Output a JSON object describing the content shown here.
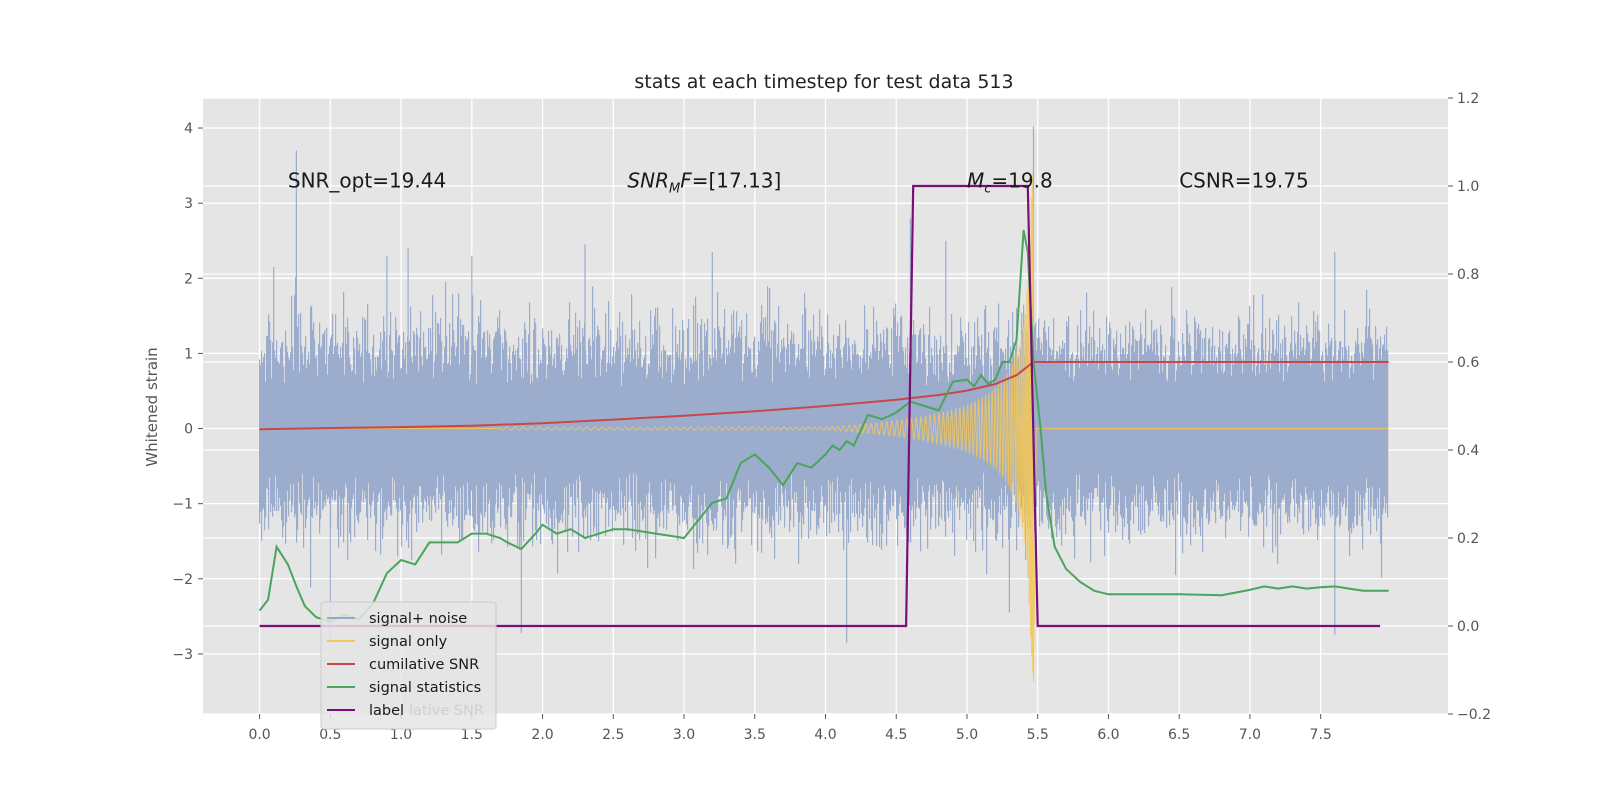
{
  "chart_data": {
    "type": "line",
    "title": "stats at each timestep for test data 513",
    "xlabel": "",
    "ylabel": "Whitened strain",
    "grid": true,
    "xlim": [
      -0.4,
      8.4
    ],
    "ylim": [
      -3.8,
      4.4
    ],
    "y2lim": [
      -0.2,
      1.2
    ],
    "x_ticks": [
      0.0,
      0.5,
      1.0,
      1.5,
      2.0,
      2.5,
      3.0,
      3.5,
      4.0,
      4.5,
      5.0,
      5.5,
      6.0,
      6.5,
      7.0,
      7.5
    ],
    "x_tick_labels": [
      "0.0",
      "0.5",
      "1.0",
      "1.5",
      "2.0",
      "2.5",
      "3.0",
      "3.5",
      "4.0",
      "4.5",
      "5.0",
      "5.5",
      "6.0",
      "6.5",
      "7.0",
      "7.5"
    ],
    "y_ticks": [
      4,
      3,
      2,
      1,
      0,
      -1,
      -2,
      -3
    ],
    "y_tick_labels": [
      "4",
      "3",
      "2",
      "1",
      "0",
      "−1",
      "−2",
      "−3"
    ],
    "y2_ticks": [
      1.2,
      1.0,
      0.8,
      0.6,
      0.4,
      0.2,
      0.0,
      -0.2
    ],
    "y2_tick_labels": [
      "1.2",
      "1.0",
      "0.8",
      "0.6",
      "0.4",
      "0.2",
      "0.0",
      "−0.2"
    ],
    "annotations": [
      {
        "id": "snr-opt",
        "x": 0.2,
        "y": 3.3,
        "text": "SNR_opt=19.44"
      },
      {
        "id": "snr-mf",
        "x": 2.6,
        "y": 3.3,
        "text": "SNR_MF=[17.13]",
        "base": "SNR",
        "sub": "M",
        "rest": "F=[17.13]"
      },
      {
        "id": "mc",
        "x": 5.0,
        "y": 3.3,
        "text": "M_c=19.8",
        "base": "M",
        "sub": "c",
        "rest": "=19.8"
      },
      {
        "id": "csnr",
        "x": 6.5,
        "y": 3.3,
        "text": "CSNR=19.75"
      }
    ],
    "legend": {
      "placement": "lower-left",
      "entries": [
        {
          "label": "signal+ noise",
          "color": "#97a9ca"
        },
        {
          "label": "signal only",
          "color": "#f2c75c"
        },
        {
          "label": "cumilative SNR",
          "color": "#c84848"
        },
        {
          "label": "signal statistics",
          "color": "#4aa55c"
        },
        {
          "label": "label",
          "color": "#7a0f7a"
        }
      ],
      "ghost_text": "lative SNR"
    },
    "series": [
      {
        "name": "signal+ noise",
        "axis": "left",
        "color": "#97a9ca",
        "style": "dense-noise",
        "x_range": [
          0.0,
          7.98
        ],
        "envelope": 1.6,
        "spikes": [
          {
            "x": 0.26,
            "y": 3.7
          },
          {
            "x": 0.1,
            "y": 2.15
          },
          {
            "x": 0.9,
            "y": 2.3
          },
          {
            "x": 1.05,
            "y": 2.4
          },
          {
            "x": 1.5,
            "y": 2.3
          },
          {
            "x": 2.3,
            "y": 2.45
          },
          {
            "x": 3.2,
            "y": 2.35
          },
          {
            "x": 4.6,
            "y": 2.8
          },
          {
            "x": 4.85,
            "y": 2.5
          },
          {
            "x": 5.47,
            "y": 4.02
          },
          {
            "x": 7.6,
            "y": 2.35
          },
          {
            "x": 1.85,
            "y": -2.72
          },
          {
            "x": 4.15,
            "y": -2.85
          },
          {
            "x": 0.5,
            "y": -2.9
          },
          {
            "x": 7.6,
            "y": -2.75
          },
          {
            "x": 5.3,
            "y": -2.45
          }
        ]
      },
      {
        "name": "signal only",
        "axis": "left",
        "color": "#f2c75c",
        "style": "chirp",
        "chirp": {
          "t_start": 1.7,
          "t_merge": 5.47,
          "a_start": 0.02,
          "a_peak": 3.4,
          "min": -3.42,
          "max": 3.5
        }
      },
      {
        "name": "cumilative SNR",
        "axis": "right",
        "color": "#c84848",
        "x": [
          0.0,
          0.5,
          1.0,
          1.5,
          2.0,
          2.5,
          3.0,
          3.5,
          4.0,
          4.5,
          4.8,
          5.0,
          5.2,
          5.35,
          5.45,
          5.47,
          7.98
        ],
        "y": [
          0.447,
          0.45,
          0.452,
          0.455,
          0.461,
          0.469,
          0.478,
          0.488,
          0.5,
          0.514,
          0.525,
          0.535,
          0.55,
          0.57,
          0.595,
          0.6,
          0.6
        ]
      },
      {
        "name": "signal statistics",
        "axis": "right",
        "color": "#4aa55c",
        "x": [
          0.0,
          0.06,
          0.12,
          0.2,
          0.26,
          0.32,
          0.4,
          0.5,
          0.6,
          0.7,
          0.8,
          0.9,
          1.0,
          1.1,
          1.2,
          1.3,
          1.4,
          1.5,
          1.6,
          1.7,
          1.75,
          1.85,
          1.95,
          2.0,
          2.1,
          2.2,
          2.3,
          2.4,
          2.5,
          2.6,
          2.7,
          2.8,
          2.9,
          3.0,
          3.1,
          3.2,
          3.3,
          3.4,
          3.5,
          3.6,
          3.7,
          3.8,
          3.9,
          4.0,
          4.05,
          4.1,
          4.15,
          4.2,
          4.3,
          4.4,
          4.5,
          4.6,
          4.7,
          4.8,
          4.9,
          5.0,
          5.05,
          5.1,
          5.15,
          5.2,
          5.25,
          5.3,
          5.35,
          5.4,
          5.43,
          5.47,
          5.52,
          5.56,
          5.62,
          5.7,
          5.8,
          5.9,
          6.0,
          6.2,
          6.5,
          6.8,
          7.0,
          7.1,
          7.2,
          7.3,
          7.4,
          7.5,
          7.6,
          7.7,
          7.8,
          7.9,
          7.98
        ],
        "y": [
          0.035,
          0.06,
          0.18,
          0.14,
          0.09,
          0.045,
          0.02,
          0.01,
          0.025,
          0.015,
          0.05,
          0.12,
          0.15,
          0.14,
          0.19,
          0.19,
          0.19,
          0.21,
          0.21,
          0.2,
          0.19,
          0.175,
          0.21,
          0.23,
          0.21,
          0.22,
          0.2,
          0.21,
          0.22,
          0.22,
          0.215,
          0.21,
          0.205,
          0.2,
          0.24,
          0.28,
          0.29,
          0.37,
          0.39,
          0.36,
          0.32,
          0.37,
          0.36,
          0.39,
          0.41,
          0.4,
          0.42,
          0.41,
          0.48,
          0.47,
          0.485,
          0.51,
          0.5,
          0.49,
          0.555,
          0.56,
          0.545,
          0.57,
          0.55,
          0.56,
          0.6,
          0.6,
          0.65,
          0.9,
          0.85,
          0.6,
          0.45,
          0.3,
          0.18,
          0.13,
          0.1,
          0.08,
          0.072,
          0.072,
          0.072,
          0.07,
          0.082,
          0.09,
          0.085,
          0.09,
          0.085,
          0.088,
          0.09,
          0.085,
          0.08,
          0.08,
          0.08
        ]
      },
      {
        "name": "label",
        "axis": "right",
        "color": "#7a0f7a",
        "x": [
          0.0,
          4.57,
          4.62,
          5.43,
          5.5,
          7.92
        ],
        "y": [
          0.0,
          0.0,
          1.0,
          1.0,
          0.0,
          0.0
        ]
      }
    ]
  }
}
